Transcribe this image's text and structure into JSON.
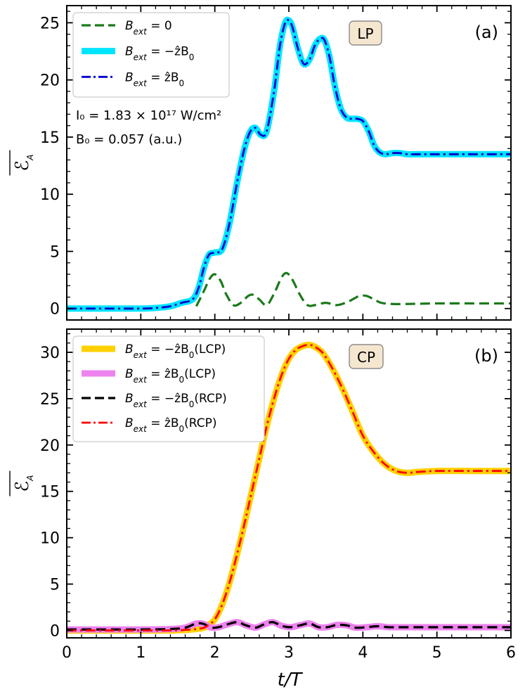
{
  "chart_data": [
    {
      "panel": "a",
      "type": "line",
      "panel_label": "(a)",
      "badge": "LP",
      "xlabel": "t/T",
      "ylabel": "ℰ_A",
      "xlim": [
        0,
        6
      ],
      "ylim": [
        -1,
        26.5
      ],
      "xticks": [
        0,
        1,
        2,
        3,
        4,
        5,
        6
      ],
      "yticks": [
        0,
        5,
        10,
        15,
        20,
        25
      ],
      "xtick_labels_shown": false,
      "annotations": [
        "I₀ = 1.83 × 10¹⁷ W/cm²",
        "B₀ = 0.057 (a.u.)"
      ],
      "series": [
        {
          "name": "B_ext = −ẑB₀",
          "legend_main": "B",
          "legend_sub": "ext",
          "legend_rest": " = −ẑB",
          "legend_tail_sub": "0",
          "legend_suffix": "",
          "color": "#00e5ff",
          "style": "solid-thick",
          "x": [
            0,
            0.5,
            1.0,
            1.2,
            1.4,
            1.55,
            1.7,
            1.78,
            1.85,
            1.92,
            2.0,
            2.1,
            2.2,
            2.3,
            2.4,
            2.48,
            2.55,
            2.62,
            2.7,
            2.8,
            2.88,
            2.95,
            3.0,
            3.05,
            3.12,
            3.2,
            3.28,
            3.35,
            3.42,
            3.48,
            3.55,
            3.62,
            3.7,
            3.78,
            3.85,
            3.92,
            4.0,
            4.08,
            4.15,
            4.22,
            4.3,
            4.4,
            4.5,
            4.6,
            4.75,
            5.0,
            5.5,
            6.0
          ],
          "y": [
            0,
            0,
            0,
            0.05,
            0.2,
            0.5,
            0.8,
            1.8,
            3.5,
            4.7,
            4.9,
            5.2,
            7.5,
            11.0,
            14.0,
            15.5,
            15.8,
            15.2,
            15.5,
            19.0,
            23.0,
            25.0,
            25.2,
            24.6,
            22.8,
            21.4,
            21.8,
            23.0,
            23.6,
            23.5,
            22.0,
            19.5,
            17.5,
            16.7,
            16.6,
            16.6,
            16.4,
            15.5,
            14.3,
            13.7,
            13.5,
            13.6,
            13.6,
            13.5,
            13.5,
            13.5,
            13.5,
            13.5
          ]
        },
        {
          "name": "B_ext = ẑB₀",
          "legend_main": "B",
          "legend_sub": "ext",
          "legend_rest": " = ẑB",
          "legend_tail_sub": "0",
          "legend_suffix": "",
          "color": "#0000cc",
          "style": "dashdot",
          "x": [
            0,
            0.5,
            1.0,
            1.2,
            1.4,
            1.55,
            1.7,
            1.78,
            1.85,
            1.92,
            2.0,
            2.1,
            2.2,
            2.3,
            2.4,
            2.48,
            2.55,
            2.62,
            2.7,
            2.8,
            2.88,
            2.95,
            3.0,
            3.05,
            3.12,
            3.2,
            3.28,
            3.35,
            3.42,
            3.48,
            3.55,
            3.62,
            3.7,
            3.78,
            3.85,
            3.92,
            4.0,
            4.08,
            4.15,
            4.22,
            4.3,
            4.4,
            4.5,
            4.6,
            4.75,
            5.0,
            5.5,
            6.0
          ],
          "y": [
            0,
            0,
            0,
            0.05,
            0.2,
            0.5,
            0.8,
            1.8,
            3.5,
            4.7,
            4.9,
            5.2,
            7.5,
            11.0,
            14.0,
            15.5,
            15.8,
            15.2,
            15.5,
            19.0,
            23.0,
            25.0,
            25.2,
            24.6,
            22.8,
            21.4,
            21.8,
            23.0,
            23.6,
            23.5,
            22.0,
            19.5,
            17.5,
            16.7,
            16.6,
            16.6,
            16.4,
            15.5,
            14.3,
            13.7,
            13.5,
            13.6,
            13.6,
            13.5,
            13.5,
            13.5,
            13.5,
            13.5
          ]
        },
        {
          "name": "B_ext = 0",
          "legend_main": "B",
          "legend_sub": "ext",
          "legend_rest": " = 0",
          "legend_tail_sub": "",
          "legend_suffix": "",
          "color": "#1a7a1a",
          "style": "dashed",
          "x": [
            1.75,
            1.85,
            1.93,
            2.0,
            2.08,
            2.15,
            2.25,
            2.35,
            2.45,
            2.52,
            2.6,
            2.7,
            2.8,
            2.9,
            2.97,
            3.05,
            3.15,
            3.25,
            3.35,
            3.5,
            3.65,
            3.8,
            3.95,
            4.05,
            4.15,
            4.25,
            4.4,
            4.6,
            5.0,
            5.5,
            6.0
          ],
          "y": [
            0.2,
            1.5,
            2.6,
            3.0,
            2.4,
            1.3,
            0.3,
            0.5,
            1.1,
            1.2,
            0.8,
            0.3,
            1.3,
            2.7,
            3.1,
            2.5,
            1.2,
            0.3,
            0.3,
            0.5,
            0.3,
            0.6,
            1.1,
            1.1,
            0.8,
            0.5,
            0.4,
            0.4,
            0.45,
            0.45,
            0.45
          ]
        }
      ]
    },
    {
      "panel": "b",
      "type": "line",
      "panel_label": "(b)",
      "badge": "CP",
      "xlabel": "t/T",
      "ylabel": "ℰ_A",
      "xlim": [
        0,
        6
      ],
      "ylim": [
        -0.8,
        32.5
      ],
      "xticks": [
        0,
        1,
        2,
        3,
        4,
        5,
        6
      ],
      "xtick_labels": [
        "0",
        "1",
        "2",
        "3",
        "4",
        "5",
        "6"
      ],
      "yticks": [
        0,
        5,
        10,
        15,
        20,
        25,
        30
      ],
      "series": [
        {
          "name": "B_ext = −ẑB₀(LCP)",
          "legend_main": "B",
          "legend_sub": "ext",
          "legend_rest": " = −ẑB",
          "legend_tail_sub": "0",
          "legend_suffix": "(LCP)",
          "color": "#ffd000",
          "style": "solid-thick",
          "x": [
            0,
            0.5,
            1.0,
            1.5,
            1.8,
            1.9,
            2.0,
            2.1,
            2.2,
            2.3,
            2.4,
            2.5,
            2.6,
            2.7,
            2.8,
            2.9,
            3.0,
            3.1,
            3.2,
            3.28,
            3.35,
            3.45,
            3.55,
            3.7,
            3.85,
            4.0,
            4.15,
            4.3,
            4.45,
            4.6,
            4.75,
            5.0,
            5.5,
            6.0
          ],
          "y": [
            0,
            0,
            0,
            0.02,
            0.2,
            0.5,
            1.2,
            2.8,
            5.2,
            8.2,
            11.5,
            15.0,
            18.5,
            22.0,
            25.0,
            27.5,
            29.3,
            30.3,
            30.7,
            30.8,
            30.6,
            30.0,
            28.8,
            26.5,
            23.8,
            21.0,
            19.2,
            17.9,
            17.2,
            17.0,
            17.1,
            17.2,
            17.2,
            17.2
          ]
        },
        {
          "name": "B_ext = ẑB₀(LCP)",
          "legend_main": "B",
          "legend_sub": "ext",
          "legend_rest": " = ẑB",
          "legend_tail_sub": "0",
          "legend_suffix": "(LCP)",
          "color": "#ee82ee",
          "style": "solid-thick",
          "x": [
            0,
            0.5,
            1.0,
            1.4,
            1.6,
            1.75,
            1.85,
            1.95,
            2.05,
            2.15,
            2.3,
            2.42,
            2.55,
            2.65,
            2.78,
            2.9,
            3.02,
            3.15,
            3.28,
            3.4,
            3.52,
            3.65,
            3.78,
            3.9,
            4.05,
            4.2,
            4.35,
            4.5,
            5.0,
            5.5,
            6.0
          ],
          "y": [
            0.1,
            0.1,
            0.1,
            0.15,
            0.3,
            0.75,
            0.7,
            0.3,
            0.35,
            0.6,
            0.9,
            0.55,
            0.3,
            0.6,
            0.9,
            0.5,
            0.35,
            0.55,
            0.75,
            0.35,
            0.35,
            0.6,
            0.55,
            0.3,
            0.35,
            0.45,
            0.35,
            0.35,
            0.35,
            0.35,
            0.35
          ]
        },
        {
          "name": "B_ext = −ẑB₀(RCP)",
          "legend_main": "B",
          "legend_sub": "ext",
          "legend_rest": " = −ẑB",
          "legend_tail_sub": "0",
          "legend_suffix": "(RCP)",
          "color": "#000000",
          "style": "dashed",
          "x": [
            0,
            0.5,
            1.0,
            1.4,
            1.6,
            1.75,
            1.85,
            1.95,
            2.05,
            2.15,
            2.3,
            2.42,
            2.55,
            2.65,
            2.78,
            2.9,
            3.02,
            3.15,
            3.28,
            3.4,
            3.52,
            3.65,
            3.78,
            3.9,
            4.05,
            4.2,
            4.35,
            4.5,
            5.0,
            5.5,
            6.0
          ],
          "y": [
            0.1,
            0.1,
            0.1,
            0.15,
            0.3,
            0.75,
            0.7,
            0.3,
            0.35,
            0.6,
            0.9,
            0.55,
            0.3,
            0.6,
            0.9,
            0.5,
            0.35,
            0.55,
            0.75,
            0.35,
            0.35,
            0.6,
            0.55,
            0.3,
            0.35,
            0.45,
            0.35,
            0.35,
            0.35,
            0.35,
            0.35
          ]
        },
        {
          "name": "B_ext = ẑB₀(RCP)",
          "legend_main": "B",
          "legend_sub": "ext",
          "legend_rest": " = ẑB",
          "legend_tail_sub": "0",
          "legend_suffix": "(RCP)",
          "color": "#ff0000",
          "style": "dashdot",
          "x": [
            0,
            0.5,
            1.0,
            1.5,
            1.8,
            1.9,
            2.0,
            2.1,
            2.2,
            2.3,
            2.4,
            2.5,
            2.6,
            2.7,
            2.8,
            2.9,
            3.0,
            3.1,
            3.2,
            3.28,
            3.35,
            3.45,
            3.55,
            3.7,
            3.85,
            4.0,
            4.15,
            4.3,
            4.45,
            4.6,
            4.75,
            5.0,
            5.5,
            6.0
          ],
          "y": [
            0,
            0,
            0,
            0.02,
            0.2,
            0.5,
            1.2,
            2.8,
            5.2,
            8.2,
            11.5,
            15.0,
            18.5,
            22.0,
            25.0,
            27.5,
            29.3,
            30.3,
            30.7,
            30.8,
            30.6,
            30.0,
            28.8,
            26.5,
            23.8,
            21.0,
            19.2,
            17.9,
            17.2,
            17.0,
            17.1,
            17.2,
            17.2,
            17.2
          ]
        }
      ]
    }
  ]
}
